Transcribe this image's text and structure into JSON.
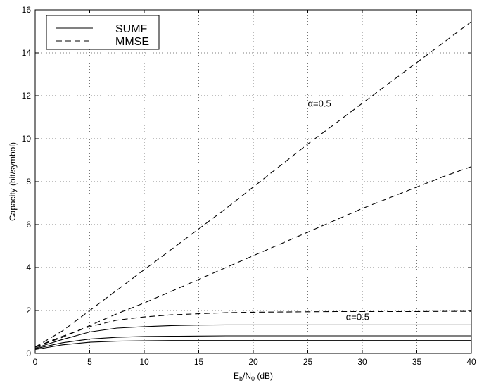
{
  "chart_data": {
    "type": "line",
    "title": "",
    "xlabel": {
      "main": "E",
      "sub1": "b",
      "mid": "/N",
      "sub2": "0",
      "tail": " (dB)"
    },
    "ylabel": "Capacity (bit/symbol)",
    "xlim": [
      0,
      40
    ],
    "ylim": [
      0,
      16
    ],
    "xticks": [
      "0",
      "5",
      "10",
      "15",
      "20",
      "25",
      "30",
      "35",
      "40"
    ],
    "yticks": [
      "0",
      "2",
      "4",
      "6",
      "8",
      "10",
      "12",
      "14",
      "16"
    ],
    "grid": true,
    "legend": {
      "position": "top-left",
      "entries": [
        {
          "label": "SUMF",
          "style": "solid"
        },
        {
          "label": "MMSE",
          "style": "dashed"
        }
      ]
    },
    "annotations": [
      {
        "text": "α=0.5",
        "x": 25,
        "y": 11.5
      },
      {
        "text": "α=0.5",
        "x": 28.5,
        "y": 1.55
      }
    ],
    "series": [
      {
        "legend": "MMSE",
        "style": "dashed",
        "x": [
          0,
          2.5,
          5,
          7.5,
          10,
          12.5,
          15,
          17.5,
          20,
          22.5,
          25,
          27.5,
          30,
          32.5,
          35,
          37.5,
          40
        ],
        "y": [
          0.3,
          1.05,
          2.0,
          2.95,
          3.9,
          4.85,
          5.8,
          6.75,
          7.75,
          8.75,
          9.75,
          10.7,
          11.65,
          12.6,
          13.55,
          14.5,
          15.45
        ]
      },
      {
        "legend": "MMSE",
        "style": "dashed",
        "x": [
          0,
          2.5,
          5,
          7.5,
          10,
          12.5,
          15,
          17.5,
          20,
          22.5,
          25,
          27.5,
          30,
          32.5,
          35,
          37.5,
          40
        ],
        "y": [
          0.3,
          0.75,
          1.3,
          1.85,
          2.35,
          2.9,
          3.45,
          4.0,
          4.55,
          5.1,
          5.65,
          6.2,
          6.75,
          7.25,
          7.75,
          8.25,
          8.7
        ]
      },
      {
        "legend": "MMSE",
        "style": "dashed",
        "x": [
          0,
          2.5,
          5,
          7.5,
          10,
          12.5,
          15,
          17.5,
          20,
          22.5,
          25,
          27.5,
          30,
          32.5,
          35,
          37.5,
          40
        ],
        "y": [
          0.3,
          0.8,
          1.25,
          1.55,
          1.7,
          1.8,
          1.85,
          1.9,
          1.92,
          1.93,
          1.94,
          1.95,
          1.95,
          1.95,
          1.95,
          1.96,
          1.96
        ]
      },
      {
        "legend": "SUMF",
        "style": "solid",
        "x": [
          0,
          2.5,
          5,
          7.5,
          10,
          12.5,
          15,
          17.5,
          20,
          22.5,
          25,
          27.5,
          30,
          32.5,
          35,
          37.5,
          40
        ],
        "y": [
          0.25,
          0.65,
          1.0,
          1.18,
          1.25,
          1.3,
          1.32,
          1.33,
          1.33,
          1.33,
          1.33,
          1.33,
          1.33,
          1.33,
          1.33,
          1.33,
          1.33
        ]
      },
      {
        "legend": "SUMF",
        "style": "solid",
        "x": [
          0,
          2.5,
          5,
          7.5,
          10,
          12.5,
          15,
          17.5,
          20,
          22.5,
          25,
          27.5,
          30,
          32.5,
          35,
          37.5,
          40
        ],
        "y": [
          0.22,
          0.5,
          0.67,
          0.75,
          0.79,
          0.8,
          0.81,
          0.82,
          0.82,
          0.82,
          0.82,
          0.82,
          0.82,
          0.82,
          0.82,
          0.82,
          0.82
        ]
      },
      {
        "legend": "SUMF",
        "style": "solid",
        "x": [
          0,
          2.5,
          5,
          7.5,
          10,
          12.5,
          15,
          17.5,
          20,
          22.5,
          25,
          27.5,
          30,
          32.5,
          35,
          37.5,
          40
        ],
        "y": [
          0.18,
          0.4,
          0.52,
          0.57,
          0.59,
          0.6,
          0.6,
          0.6,
          0.6,
          0.6,
          0.6,
          0.6,
          0.6,
          0.6,
          0.6,
          0.6,
          0.6
        ]
      }
    ]
  }
}
